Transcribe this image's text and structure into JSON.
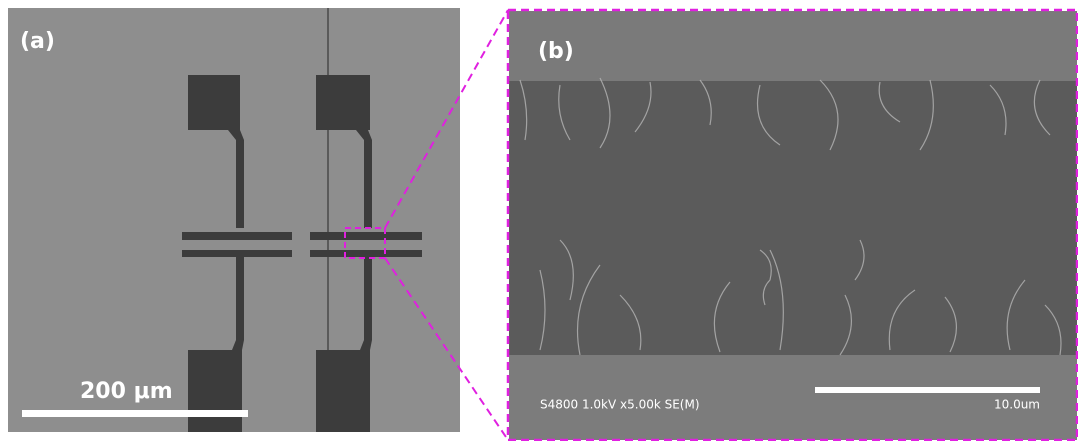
{
  "panel_a": {
    "label": "(a)",
    "scale_bar": "200 μm"
  },
  "panel_b": {
    "label": "(b)",
    "instrument": "S4800 1.0kV x5.00k SE(M)",
    "scale_bar": "10.0um"
  }
}
